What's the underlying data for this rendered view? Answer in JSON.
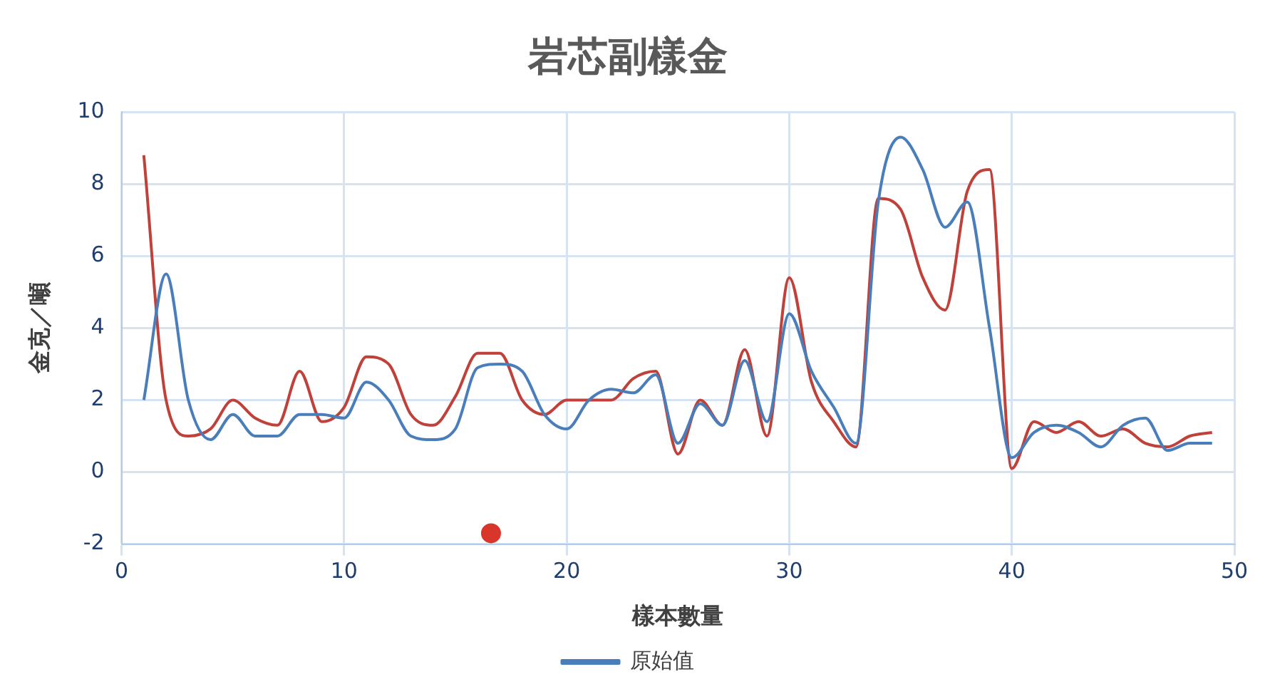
{
  "chart_data": {
    "type": "line",
    "title": "岩芯副樣金",
    "xlabel": "樣本數量",
    "ylabel": "金克／噸",
    "x": [
      1,
      2,
      3,
      4,
      5,
      6,
      7,
      8,
      9,
      10,
      11,
      12,
      13,
      14,
      15,
      16,
      17,
      18,
      19,
      20,
      21,
      22,
      23,
      24,
      25,
      26,
      27,
      28,
      29,
      30,
      31,
      32,
      33,
      34,
      35,
      36,
      37,
      38,
      39,
      40,
      41,
      42,
      43,
      44,
      45,
      46,
      47,
      48,
      49
    ],
    "xlim": [
      0,
      50
    ],
    "xticks": [
      0,
      10,
      20,
      30,
      40,
      50
    ],
    "ylim": [
      -2,
      10
    ],
    "yticks": [
      -2,
      0,
      2,
      4,
      6,
      8,
      10
    ],
    "grid": true,
    "legend": "bottom",
    "marker": "none",
    "line_style": "solid",
    "series": [
      {
        "name": "原始值",
        "color": "#4a7ebb",
        "values": [
          2.0,
          5.5,
          2.0,
          0.9,
          1.6,
          1.0,
          1.0,
          1.6,
          1.6,
          1.5,
          2.5,
          2.0,
          1.0,
          0.9,
          1.2,
          2.9,
          3.0,
          2.8,
          1.6,
          1.2,
          2.0,
          2.3,
          2.2,
          2.7,
          0.8,
          1.9,
          1.3,
          3.1,
          1.4,
          4.4,
          2.8,
          1.8,
          0.8,
          7.5,
          9.3,
          8.4,
          6.8,
          7.5,
          4.0,
          0.4,
          1.1,
          1.3,
          1.1,
          0.7,
          1.3,
          1.5,
          0.6,
          0.8,
          0.8
        ]
      },
      {
        "color": "#c0403a",
        "values": [
          8.8,
          2.0,
          1.0,
          1.2,
          2.0,
          1.5,
          1.3,
          2.8,
          1.4,
          1.8,
          3.2,
          3.0,
          1.6,
          1.3,
          2.1,
          3.3,
          3.3,
          2.0,
          1.6,
          2.0,
          2.0,
          2.0,
          2.6,
          2.8,
          0.5,
          2.0,
          1.3,
          3.4,
          1.0,
          5.4,
          2.5,
          1.4,
          0.7,
          7.6,
          7.3,
          5.4,
          4.5,
          7.8,
          8.4,
          0.1,
          1.4,
          1.1,
          1.4,
          1.0,
          1.2,
          0.8,
          0.7,
          1.0,
          1.1
        ]
      },
      {
        "type": "scatter",
        "marker": "circle",
        "color": "#d9362b",
        "x": [
          16.6
        ],
        "values": [
          -1.7
        ]
      }
    ]
  }
}
